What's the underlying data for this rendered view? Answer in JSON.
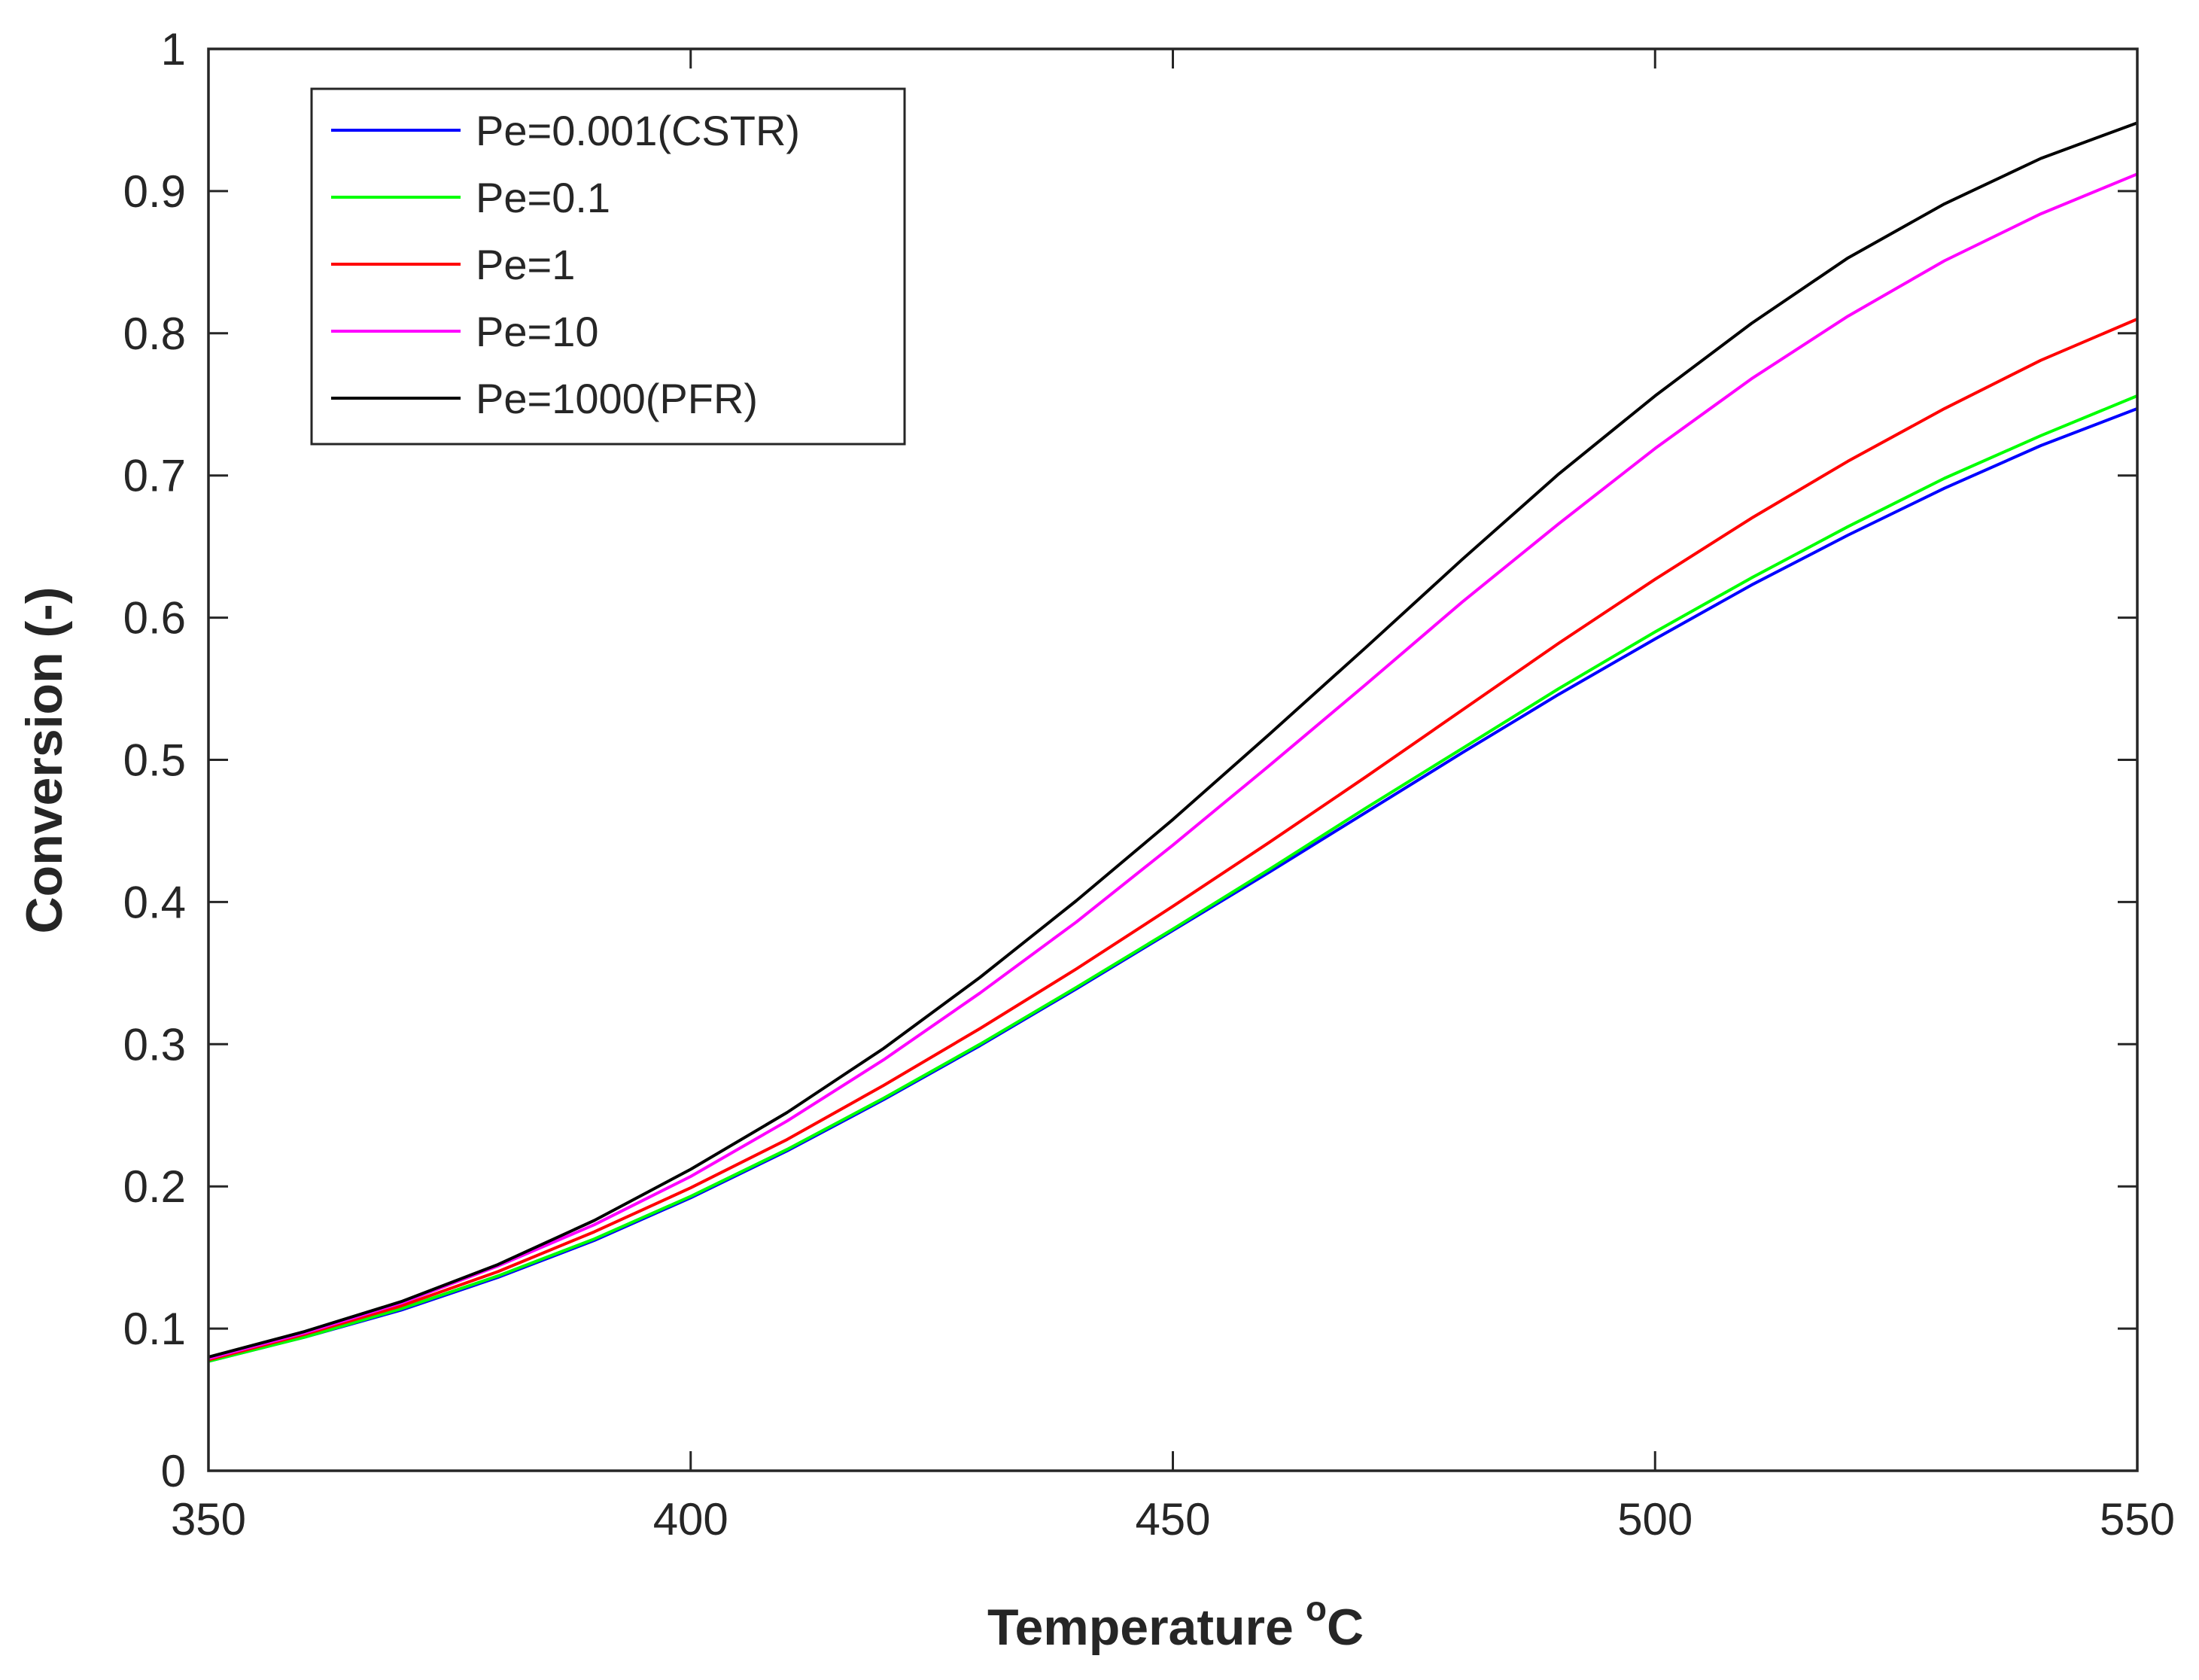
{
  "chart_data": {
    "type": "line",
    "title": "",
    "xlabel": "Temperature",
    "xlabel_superscript": "o",
    "xlabel_unit": "C",
    "ylabel": "Conversion (-)",
    "xlim": [
      350,
      550
    ],
    "ylim": [
      0,
      1
    ],
    "xticks": [
      350,
      400,
      450,
      500,
      550
    ],
    "xtick_labels": [
      "350",
      "400",
      "450",
      "500",
      "550"
    ],
    "yticks": [
      0,
      0.1,
      0.2,
      0.3,
      0.4,
      0.5,
      0.6,
      0.7,
      0.8,
      0.9,
      1
    ],
    "ytick_labels": [
      "0",
      "0.1",
      "0.2",
      "0.3",
      "0.4",
      "0.5",
      "0.6",
      "0.7",
      "0.8",
      "0.9",
      "1"
    ],
    "grid": false,
    "legend_position": "top-left",
    "x": [
      350,
      360,
      370,
      380,
      390,
      400,
      410,
      420,
      430,
      440,
      450,
      460,
      470,
      480,
      490,
      500,
      510,
      520,
      530,
      540,
      550
    ],
    "series": [
      {
        "name": "Pe=0.001(CSTR)",
        "color": "#0000ff",
        "values": [
          0.077,
          0.094,
          0.113,
          0.136,
          0.162,
          0.192,
          0.225,
          0.261,
          0.299,
          0.339,
          0.38,
          0.421,
          0.463,
          0.505,
          0.546,
          0.585,
          0.623,
          0.658,
          0.691,
          0.721,
          0.747
        ]
      },
      {
        "name": "Pe=0.1",
        "color": "#00ff00",
        "values": [
          0.077,
          0.094,
          0.114,
          0.137,
          0.163,
          0.193,
          0.226,
          0.262,
          0.3,
          0.34,
          0.381,
          0.423,
          0.466,
          0.508,
          0.55,
          0.59,
          0.628,
          0.664,
          0.698,
          0.728,
          0.756
        ]
      },
      {
        "name": "Pe=1",
        "color": "#ff0000",
        "values": [
          0.078,
          0.096,
          0.116,
          0.14,
          0.168,
          0.199,
          0.233,
          0.271,
          0.311,
          0.353,
          0.397,
          0.442,
          0.488,
          0.535,
          0.582,
          0.627,
          0.67,
          0.71,
          0.747,
          0.781,
          0.81
        ]
      },
      {
        "name": "Pe=10",
        "color": "#ff00ff",
        "values": [
          0.079,
          0.097,
          0.118,
          0.144,
          0.173,
          0.207,
          0.246,
          0.289,
          0.336,
          0.386,
          0.44,
          0.496,
          0.553,
          0.611,
          0.666,
          0.719,
          0.768,
          0.812,
          0.851,
          0.884,
          0.912
        ]
      },
      {
        "name": "Pe=1000(PFR)",
        "color": "#000000",
        "values": [
          0.08,
          0.098,
          0.119,
          0.145,
          0.176,
          0.212,
          0.252,
          0.297,
          0.347,
          0.401,
          0.458,
          0.518,
          0.579,
          0.641,
          0.701,
          0.756,
          0.807,
          0.853,
          0.891,
          0.923,
          0.948
        ]
      }
    ]
  }
}
